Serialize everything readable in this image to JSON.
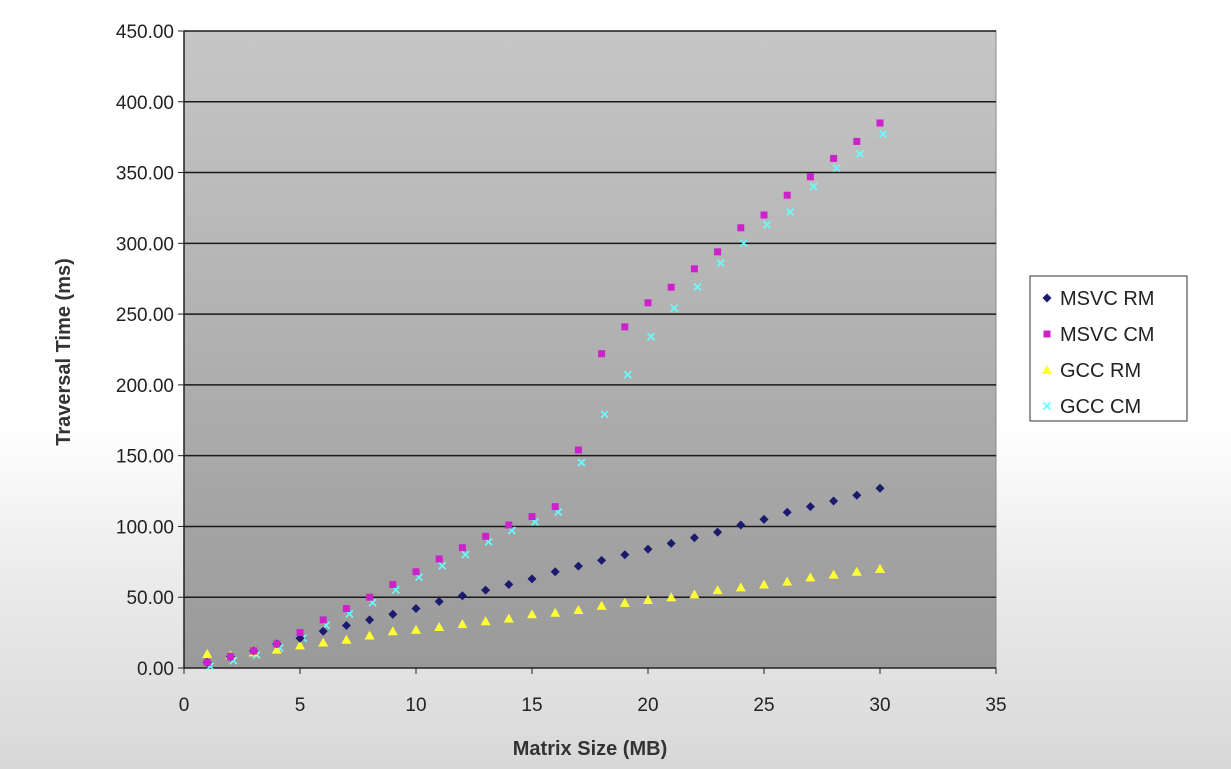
{
  "chart_data": {
    "type": "scatter",
    "title": "",
    "xlabel": "Matrix Size (MB)",
    "ylabel": "Traversal Time (ms)",
    "xlim": [
      0,
      35
    ],
    "ylim": [
      0,
      450
    ],
    "x_ticks": [
      "0",
      "5",
      "10",
      "15",
      "20",
      "25",
      "30",
      "35"
    ],
    "y_ticks": [
      "0.00",
      "50.00",
      "100.00",
      "150.00",
      "200.00",
      "250.00",
      "300.00",
      "350.00",
      "400.00",
      "450.00"
    ],
    "grid": "horizontal",
    "legend": "right",
    "plot_background": "gray gradient",
    "x": [
      1,
      2,
      3,
      4,
      5,
      6,
      7,
      8,
      9,
      10,
      11,
      12,
      13,
      14,
      15,
      16,
      17,
      18,
      19,
      20,
      21,
      22,
      23,
      24,
      25,
      26,
      27,
      28,
      29,
      30
    ],
    "series": [
      {
        "name": "MSVC RM",
        "marker": "diamond",
        "color": "#1a1a6e",
        "values": [
          4,
          8,
          12,
          17,
          21,
          26,
          30,
          34,
          38,
          42,
          47,
          51,
          55,
          59,
          63,
          68,
          72,
          76,
          80,
          84,
          88,
          92,
          96,
          101,
          105,
          110,
          114,
          118,
          122,
          127
        ]
      },
      {
        "name": "MSVC CM",
        "marker": "square",
        "color": "#cc22cc",
        "values": [
          4,
          8,
          12,
          17,
          25,
          34,
          42,
          50,
          59,
          68,
          77,
          85,
          93,
          101,
          107,
          114,
          154,
          222,
          241,
          258,
          269,
          282,
          294,
          311,
          320,
          334,
          347,
          360,
          372,
          385
        ]
      },
      {
        "name": "GCC RM",
        "marker": "triangle",
        "color": "#ffff33",
        "values": [
          10,
          9,
          11,
          13,
          16,
          18,
          20,
          23,
          26,
          27,
          29,
          31,
          33,
          35,
          38,
          39,
          41,
          44,
          46,
          48,
          50,
          52,
          55,
          57,
          59,
          61,
          64,
          66,
          68,
          70
        ]
      },
      {
        "name": "GCC CM",
        "marker": "x",
        "color": "#66ffff",
        "values": [
          4,
          8,
          12,
          17,
          24,
          33,
          41,
          49,
          58,
          67,
          75,
          83,
          92,
          100,
          106,
          113,
          148,
          182,
          210,
          237,
          257,
          272,
          289,
          303,
          316,
          325,
          343,
          356,
          366,
          380
        ]
      }
    ]
  }
}
